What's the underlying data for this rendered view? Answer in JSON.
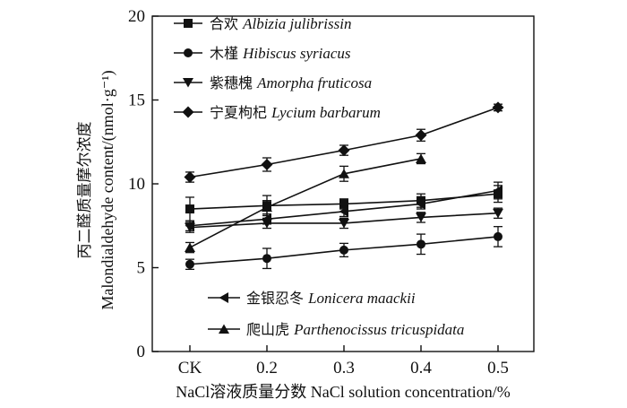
{
  "chart_data": {
    "type": "line",
    "xlabel": "NaCl溶液质量分数 NaCl solution concentration/%",
    "ylabel_zh": "丙二醛质量摩尔浓度",
    "ylabel_en": "Malondialdehyde content/(nmol·g⁻¹)",
    "categories": [
      "CK",
      "0.2",
      "0.3",
      "0.4",
      "0.5"
    ],
    "ylim": [
      0,
      20
    ],
    "yticks": [
      "0",
      "5",
      "10",
      "15",
      "20"
    ],
    "grid": false,
    "legend_placement_upper": "top-left",
    "legend_placement_lower": "bottom-right",
    "series": [
      {
        "name_zh": "合欢",
        "name_latin": "Albizia julibrissin",
        "marker": "square",
        "values": [
          8.5,
          8.7,
          8.8,
          9.0,
          9.4
        ],
        "errors": [
          0.7,
          0.6,
          0.3,
          0.4,
          0.5
        ]
      },
      {
        "name_zh": "木槿",
        "name_latin": "Hibiscus syriacus",
        "marker": "circle",
        "values": [
          5.2,
          5.55,
          6.05,
          6.4,
          6.85
        ],
        "errors": [
          0.3,
          0.6,
          0.4,
          0.6,
          0.6
        ]
      },
      {
        "name_zh": "紫穗槐",
        "name_latin": "Amorpha fruticosa",
        "marker": "triangle-down",
        "values": [
          7.4,
          7.65,
          7.65,
          8.0,
          8.25
        ],
        "errors": [
          0.3,
          0.3,
          0.3,
          0.3,
          0.3
        ]
      },
      {
        "name_zh": "宁夏枸杞",
        "name_latin": "Lycium barbarum",
        "marker": "diamond",
        "values": [
          10.4,
          11.15,
          12.0,
          12.9,
          14.55
        ],
        "errors": [
          0.3,
          0.4,
          0.3,
          0.35,
          0.2
        ]
      },
      {
        "name_zh": "金银忍冬",
        "name_latin": "Lonicera maackii",
        "marker": "triangle-left",
        "values": [
          7.5,
          7.9,
          8.35,
          8.8,
          9.6
        ],
        "errors": [
          0.3,
          0.3,
          0.3,
          0.3,
          0.5
        ]
      },
      {
        "name_zh": "爬山虎",
        "name_latin": "Parthenocissus tricuspidata",
        "marker": "triangle-up",
        "values": [
          6.2,
          8.6,
          10.6,
          11.5,
          null
        ],
        "errors": [
          0.3,
          0.4,
          0.45,
          0.3,
          null
        ]
      }
    ]
  }
}
